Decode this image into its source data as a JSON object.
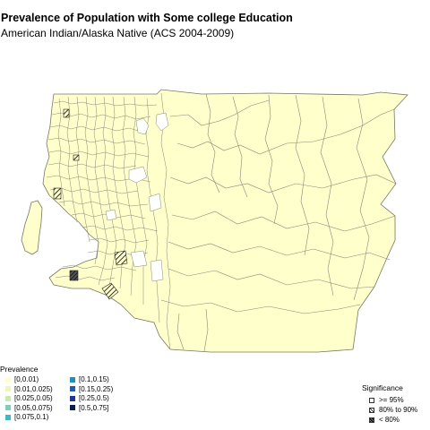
{
  "title": "Prevalence of Population with Some college Education",
  "subtitle": "American Indian/Alaska Native (ACS 2004-2009)",
  "colors": {
    "fill_low": "#ffffcc",
    "boundary": "#888877",
    "hatch": "#000000"
  },
  "legend": {
    "title": "Prevalence",
    "items": [
      {
        "label": "[0,0.01)",
        "color": "#ffffcc"
      },
      {
        "label": "[0.01,0.025)",
        "color": "#eef6b8"
      },
      {
        "label": "[0.025,0.05)",
        "color": "#c7e9b4"
      },
      {
        "label": "[0.05,0.075)",
        "color": "#7fcdbb"
      },
      {
        "label": "[0.075,0.1)",
        "color": "#41b6c4"
      },
      {
        "label": "[0.1,0.15)",
        "color": "#1d91c0"
      },
      {
        "label": "[0.15,0.25)",
        "color": "#225ea8"
      },
      {
        "label": "[0.25,0.5)",
        "color": "#253494"
      },
      {
        "label": "[0.5,0.75]",
        "color": "#081d58"
      }
    ]
  },
  "significance": {
    "title": "Significance",
    "items": [
      {
        "label": ">= 95%",
        "style": "open"
      },
      {
        "label": "80% to 90%",
        "style": "hatched"
      },
      {
        "label": "< 80%",
        "style": "dense"
      }
    ]
  }
}
